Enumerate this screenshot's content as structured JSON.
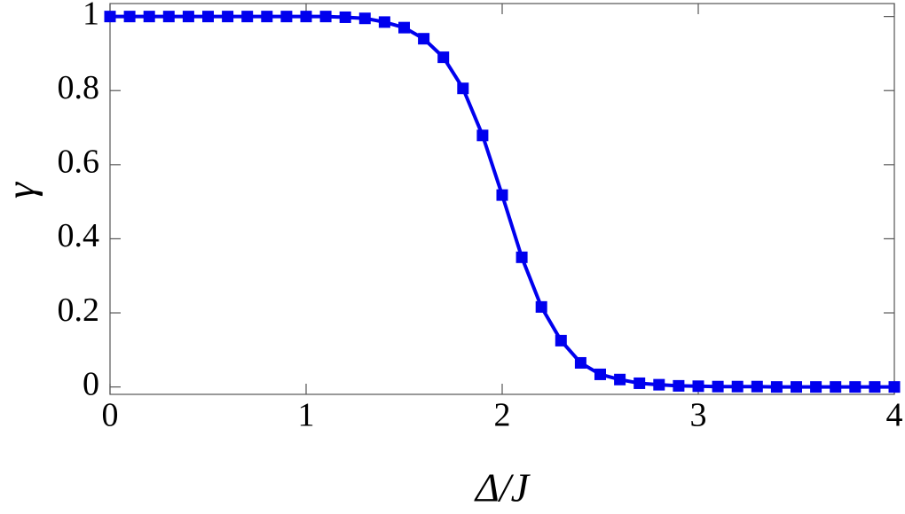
{
  "chart_data": {
    "type": "line",
    "xlabel": "Δ/J",
    "ylabel": "γ",
    "x": [
      0,
      0.1,
      0.2,
      0.3,
      0.4,
      0.5,
      0.6,
      0.7,
      0.8,
      0.9,
      1,
      1.1,
      1.2,
      1.3,
      1.4,
      1.5,
      1.6,
      1.7,
      1.8,
      1.9,
      2,
      2.1,
      2.2,
      2.3,
      2.4,
      2.5,
      2.6,
      2.7,
      2.8,
      2.9,
      3,
      3.1,
      3.2,
      3.3,
      3.4,
      3.5,
      3.6,
      3.7,
      3.8,
      3.9,
      4
    ],
    "series": [
      {
        "color": "#0000ee",
        "values": [
          1,
          1,
          1,
          1,
          1,
          1,
          1,
          1,
          1,
          1,
          1,
          1,
          0.998,
          0.995,
          0.985,
          0.97,
          0.94,
          0.89,
          0.806,
          0.679,
          0.518,
          0.35,
          0.216,
          0.125,
          0.065,
          0.034,
          0.02,
          0.01,
          0.006,
          0.003,
          0.002,
          0.001,
          0.001,
          0.001,
          0,
          0,
          0,
          0,
          0,
          0,
          0
        ]
      }
    ],
    "xlim": [
      0,
      4
    ],
    "ylim": [
      -0.02,
      1.035
    ],
    "xticks": [
      0,
      1,
      2,
      3,
      4
    ],
    "yticks": [
      0,
      0.2,
      0.4,
      0.6,
      0.8,
      1
    ]
  }
}
